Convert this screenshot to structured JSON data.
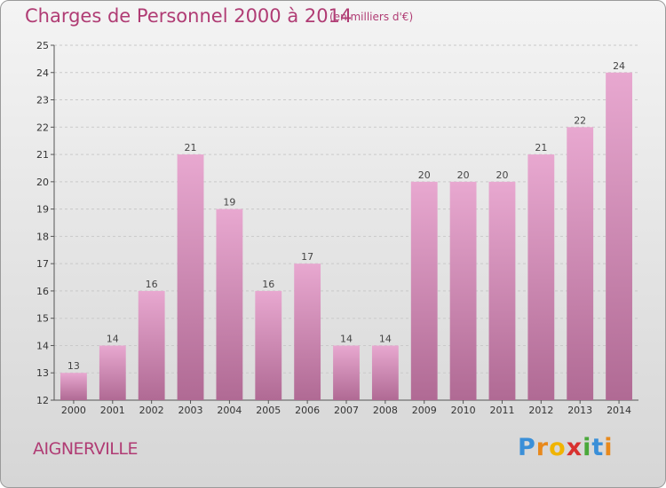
{
  "title": "Charges de Personnel 2000 à 2014",
  "subtitle": "(en milliers d'€)",
  "commune": "AIGNERVILLE",
  "brand": {
    "letters": [
      "P",
      "r",
      "o",
      "x",
      "i",
      "t",
      "i"
    ],
    "colors": [
      "#3a8fd8",
      "#e8891c",
      "#f0b400",
      "#d8312f",
      "#4aa83a",
      "#3a8fd8",
      "#e8891c"
    ]
  },
  "colors": {
    "accent": "#b03c74",
    "bar_top": "#e8a8d0",
    "bar_bottom": "#b06a94"
  },
  "chart_data": {
    "type": "bar",
    "categories": [
      "2000",
      "2001",
      "2002",
      "2003",
      "2004",
      "2005",
      "2006",
      "2007",
      "2008",
      "2009",
      "2010",
      "2011",
      "2012",
      "2013",
      "2014"
    ],
    "values": [
      13,
      14,
      16,
      21,
      19,
      16,
      17,
      14,
      14,
      20,
      20,
      20,
      21,
      22,
      24
    ],
    "ylim": [
      12,
      25
    ],
    "yticks": [
      12,
      13,
      14,
      15,
      16,
      17,
      18,
      19,
      20,
      21,
      22,
      23,
      24,
      25
    ],
    "grid": true
  }
}
